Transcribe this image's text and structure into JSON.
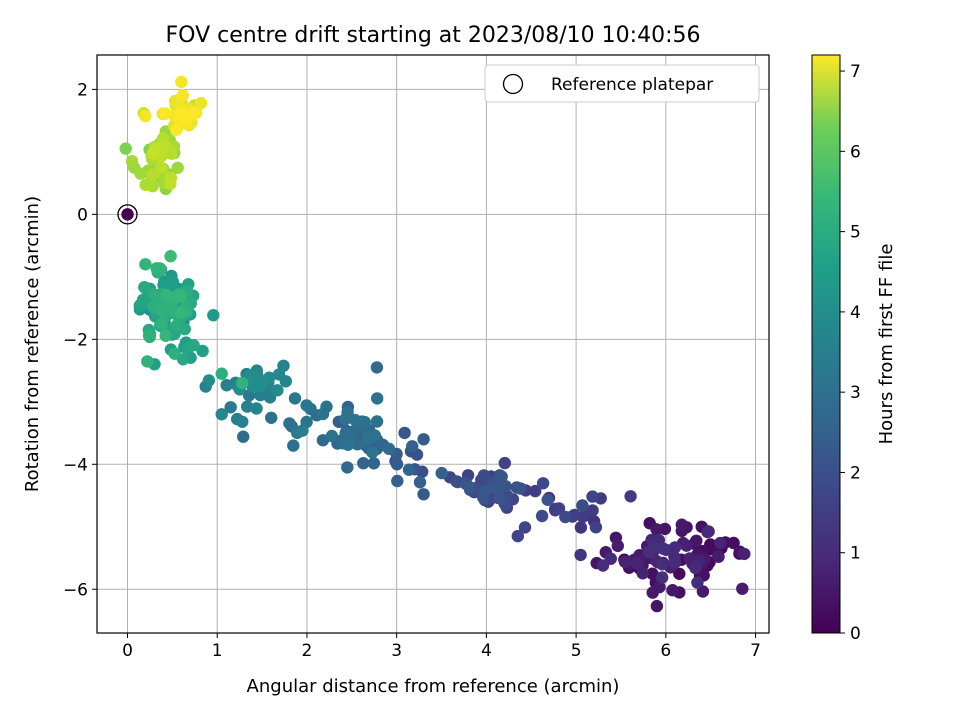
{
  "chart_data": {
    "type": "scatter",
    "title": "FOV centre drift starting at 2023/08/10 10:40:56",
    "xlabel": "Angular distance from reference (arcmin)",
    "ylabel": "Rotation from reference (arcmin)",
    "xlim": [
      -0.34,
      7.15
    ],
    "ylim": [
      -6.7,
      2.55
    ],
    "xticks": [
      0,
      1,
      2,
      3,
      4,
      5,
      6,
      7
    ],
    "yticks": [
      -6,
      -4,
      -2,
      0,
      2
    ],
    "xtick_labels": [
      "0",
      "1",
      "2",
      "3",
      "4",
      "5",
      "6",
      "7"
    ],
    "ytick_labels": [
      "−6",
      "−4",
      "−2",
      "0",
      "2"
    ],
    "grid": true,
    "legend": {
      "position": "top-right",
      "entries": [
        "Reference platepar"
      ]
    },
    "colorbar": {
      "label": "Hours from first FF file",
      "colormap": "viridis",
      "range": [
        0,
        7.2
      ],
      "ticks": [
        0,
        1,
        2,
        3,
        4,
        5,
        6,
        7
      ],
      "tick_labels": [
        "0",
        "1",
        "2",
        "3",
        "4",
        "5",
        "6",
        "7"
      ]
    },
    "reference_point": {
      "x": 0,
      "y": 0,
      "hours": 0
    },
    "clusters": [
      {
        "hours_range": [
          0.2,
          1.0
        ],
        "cx": 5.95,
        "cy": -5.45,
        "sx": 0.35,
        "sy": 0.25,
        "n": 70
      },
      {
        "hours_range": [
          0.1,
          0.6
        ],
        "cx": 6.55,
        "cy": -5.55,
        "sx": 0.15,
        "sy": 0.2,
        "n": 14
      },
      {
        "hours_range": [
          1.0,
          1.7
        ],
        "cx": 4.9,
        "cy": -4.8,
        "sx": 0.3,
        "sy": 0.15,
        "n": 20
      },
      {
        "hours_range": [
          1.3,
          2.0
        ],
        "cx": 4.05,
        "cy": -4.35,
        "sx": 0.22,
        "sy": 0.2,
        "n": 45
      },
      {
        "hours_range": [
          1.8,
          2.4
        ],
        "cx": 3.1,
        "cy": -3.95,
        "sx": 0.2,
        "sy": 0.2,
        "n": 14
      },
      {
        "hours_range": [
          2.1,
          2.8
        ],
        "cx": 2.6,
        "cy": -3.5,
        "sx": 0.18,
        "sy": 0.2,
        "n": 40
      },
      {
        "hours_range": [
          2.5,
          3.1
        ],
        "cx": 1.9,
        "cy": -3.25,
        "sx": 0.18,
        "sy": 0.2,
        "n": 14
      },
      {
        "hours_range": [
          2.9,
          3.6
        ],
        "cx": 1.3,
        "cy": -2.75,
        "sx": 0.2,
        "sy": 0.2,
        "n": 35
      },
      {
        "hours_range": [
          3.6,
          4.8
        ],
        "cx": 0.4,
        "cy": -1.5,
        "sx": 0.17,
        "sy": 0.3,
        "n": 90
      },
      {
        "hours_range": [
          4.0,
          4.6
        ],
        "cx": 0.6,
        "cy": -2.05,
        "sx": 0.1,
        "sy": 0.18,
        "n": 10
      },
      {
        "hours_range": [
          5.7,
          6.6
        ],
        "cx": 0.35,
        "cy": 0.85,
        "sx": 0.13,
        "sy": 0.2,
        "n": 45
      },
      {
        "hours_range": [
          6.6,
          7.2
        ],
        "cx": 0.6,
        "cy": 1.7,
        "sx": 0.1,
        "sy": 0.15,
        "n": 30
      }
    ],
    "points": [
      {
        "x": 6.82,
        "y": -5.43,
        "hours": 0.1
      },
      {
        "x": 6.15,
        "y": -6.05,
        "hours": 0.3
      },
      {
        "x": 5.9,
        "y": -6.27,
        "hours": 0.4
      },
      {
        "x": 6.4,
        "y": -5.0,
        "hours": 0.3
      },
      {
        "x": 5.3,
        "y": -5.62,
        "hours": 0.9
      },
      {
        "x": 5.05,
        "y": -5.45,
        "hours": 1.1
      },
      {
        "x": 4.35,
        "y": -5.15,
        "hours": 1.5
      },
      {
        "x": 3.3,
        "y": -4.48,
        "hours": 2.0
      },
      {
        "x": 3.3,
        "y": -3.6,
        "hours": 2.1
      },
      {
        "x": 2.78,
        "y": -2.45,
        "hours": 2.5
      },
      {
        "x": 2.45,
        "y": -4.05,
        "hours": 2.4
      },
      {
        "x": 1.05,
        "y": -3.2,
        "hours": 3.3
      },
      {
        "x": 1.28,
        "y": -3.32,
        "hours": 3.2
      },
      {
        "x": 1.28,
        "y": -2.7,
        "hours": 4.6
      },
      {
        "x": 1.05,
        "y": -2.55,
        "hours": 4.5
      },
      {
        "x": 0.62,
        "y": -2.32,
        "hours": 4.3
      },
      {
        "x": 0.48,
        "y": -0.67,
        "hours": 4.9
      },
      {
        "x": 0.2,
        "y": -0.8,
        "hours": 4.7
      },
      {
        "x": 0.18,
        "y": 1.62,
        "hours": 6.7
      },
      {
        "x": 0.6,
        "y": 2.12,
        "hours": 7.1
      },
      {
        "x": 0.82,
        "y": 1.78,
        "hours": 7.0
      },
      {
        "x": 0.52,
        "y": 1.42,
        "hours": 6.8
      },
      {
        "x": 0.05,
        "y": 0.85,
        "hours": 6.2
      },
      {
        "x": 0.52,
        "y": 0.98,
        "hours": 6.0
      },
      {
        "x": 0.28,
        "y": 0.45,
        "hours": 6.3
      }
    ]
  }
}
